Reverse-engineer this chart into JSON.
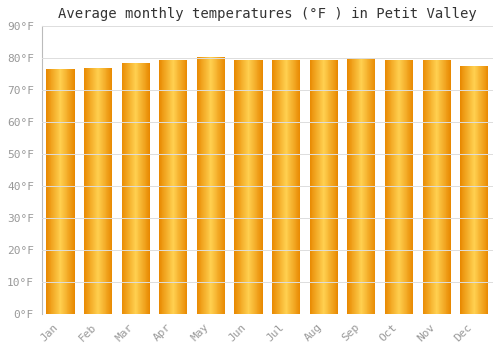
{
  "title": "Average monthly temperatures (°F ) in Petit Valley",
  "months": [
    "Jan",
    "Feb",
    "Mar",
    "Apr",
    "May",
    "Jun",
    "Jul",
    "Aug",
    "Sep",
    "Oct",
    "Nov",
    "Dec"
  ],
  "values": [
    76.5,
    77.0,
    78.5,
    79.5,
    80.5,
    79.5,
    79.5,
    79.5,
    80.0,
    79.5,
    79.5,
    77.5
  ],
  "ylim": [
    0,
    90
  ],
  "yticks": [
    0,
    10,
    20,
    30,
    40,
    50,
    60,
    70,
    80,
    90
  ],
  "bar_center_color": "#FFD050",
  "bar_edge_color": "#F0A000",
  "bar_dark_edge_color": "#C87800",
  "background_color": "#ffffff",
  "grid_color": "#dddddd",
  "title_fontsize": 10,
  "tick_fontsize": 8,
  "font_family": "monospace"
}
